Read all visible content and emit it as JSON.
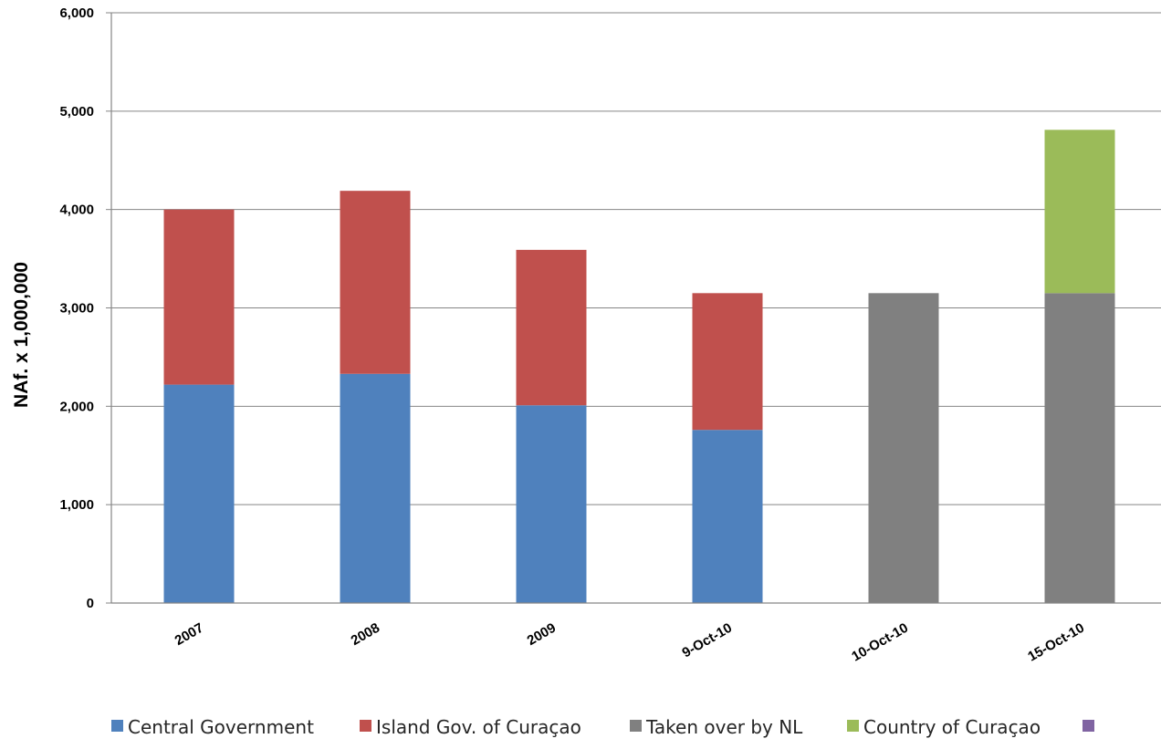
{
  "chart_data": {
    "type": "bar",
    "stacked": true,
    "title": "",
    "xlabel": "",
    "ylabel": "NAf. x 1,000,000",
    "ylim": [
      0,
      6000
    ],
    "yticks": [
      0,
      1000,
      2000,
      3000,
      4000,
      5000,
      6000
    ],
    "ytick_labels": [
      "0",
      "1,000",
      "2,000",
      "3,000",
      "4,000",
      "5,000",
      "6,000"
    ],
    "grid": true,
    "legend_position": "bottom",
    "categories": [
      "2007",
      "2008",
      "2009",
      "9-Oct-10",
      "10-Oct-10",
      "15-Oct-10"
    ],
    "series": [
      {
        "name": "Central Government",
        "color": "#4F81BD",
        "values": [
          2220,
          2330,
          2010,
          1760,
          0,
          0
        ]
      },
      {
        "name": "Island Gov. of Curaçao",
        "color": "#C0504D",
        "values": [
          1780,
          1860,
          1580,
          1390,
          0,
          0
        ]
      },
      {
        "name": "Taken over by NL",
        "color": "#808080",
        "values": [
          0,
          0,
          0,
          0,
          3150,
          3150
        ]
      },
      {
        "name": "Country of Curaçao",
        "color": "#9BBB59",
        "values": [
          0,
          0,
          0,
          0,
          0,
          1660
        ]
      },
      {
        "name": "",
        "color": "#8064A2",
        "values": [
          0,
          0,
          0,
          0,
          0,
          0
        ]
      }
    ]
  }
}
